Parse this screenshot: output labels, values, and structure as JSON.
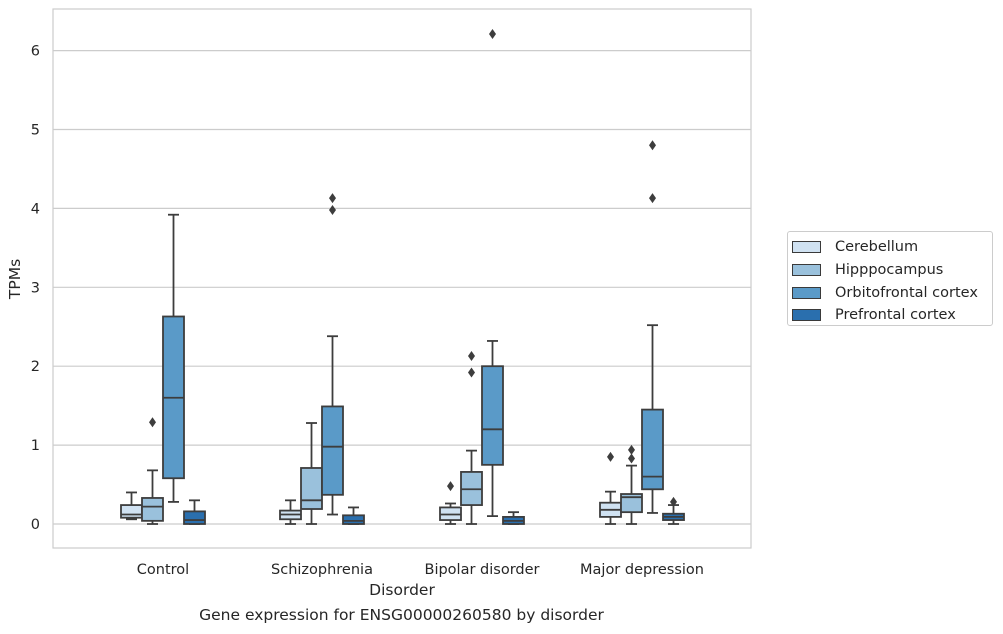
{
  "chart_data": {
    "type": "box",
    "title": "Gene expression for ENSG00000260580 by disorder",
    "xlabel": "Disorder",
    "ylabel": "TPMs",
    "ylim": [
      -0.3,
      6.52
    ],
    "yticks": [
      0,
      1,
      2,
      3,
      4,
      5,
      6
    ],
    "grid": true,
    "legend_position": "right",
    "categories": [
      "Control",
      "Schizophrenia",
      "Bipolar disorder",
      "Major depression"
    ],
    "series": [
      {
        "name": "Cerebellum",
        "color": "#d0e2f2",
        "boxes": [
          {
            "whislo": 0.06,
            "q1": 0.08,
            "med": 0.12,
            "q3": 0.24,
            "whishi": 0.4,
            "fliers": []
          },
          {
            "whislo": 0.0,
            "q1": 0.06,
            "med": 0.12,
            "q3": 0.17,
            "whishi": 0.3,
            "fliers": []
          },
          {
            "whislo": 0.0,
            "q1": 0.05,
            "med": 0.12,
            "q3": 0.21,
            "whishi": 0.26,
            "fliers": [
              0.48
            ]
          },
          {
            "whislo": 0.0,
            "q1": 0.09,
            "med": 0.18,
            "q3": 0.27,
            "whishi": 0.41,
            "fliers": [
              0.85
            ]
          }
        ]
      },
      {
        "name": "Hipppocampus",
        "color": "#9ac1dc",
        "boxes": [
          {
            "whislo": 0.0,
            "q1": 0.04,
            "med": 0.22,
            "q3": 0.33,
            "whishi": 0.68,
            "fliers": [
              1.29
            ]
          },
          {
            "whislo": 0.0,
            "q1": 0.19,
            "med": 0.3,
            "q3": 0.71,
            "whishi": 1.28,
            "fliers": []
          },
          {
            "whislo": 0.0,
            "q1": 0.24,
            "med": 0.44,
            "q3": 0.66,
            "whishi": 0.93,
            "fliers": [
              1.92,
              2.13
            ]
          },
          {
            "whislo": 0.0,
            "q1": 0.15,
            "med": 0.34,
            "q3": 0.38,
            "whishi": 0.74,
            "fliers": [
              0.83,
              0.94
            ]
          }
        ]
      },
      {
        "name": "Orbitofrontal cortex",
        "color": "#5a9ac8",
        "boxes": [
          {
            "whislo": 0.28,
            "q1": 0.58,
            "med": 1.6,
            "q3": 2.63,
            "whishi": 3.92,
            "fliers": []
          },
          {
            "whislo": 0.12,
            "q1": 0.37,
            "med": 0.98,
            "q3": 1.49,
            "whishi": 2.38,
            "fliers": [
              3.98,
              4.13
            ]
          },
          {
            "whislo": 0.1,
            "q1": 0.75,
            "med": 1.2,
            "q3": 2.0,
            "whishi": 2.32,
            "fliers": [
              6.21
            ]
          },
          {
            "whislo": 0.14,
            "q1": 0.44,
            "med": 0.6,
            "q3": 1.45,
            "whishi": 2.52,
            "fliers": [
              4.13,
              4.8
            ]
          }
        ]
      },
      {
        "name": "Prefrontal cortex",
        "color": "#2a6fae",
        "boxes": [
          {
            "whislo": 0.0,
            "q1": 0.0,
            "med": 0.05,
            "q3": 0.16,
            "whishi": 0.3,
            "fliers": []
          },
          {
            "whislo": 0.0,
            "q1": 0.0,
            "med": 0.04,
            "q3": 0.11,
            "whishi": 0.21,
            "fliers": []
          },
          {
            "whislo": 0.0,
            "q1": 0.0,
            "med": 0.04,
            "q3": 0.09,
            "whishi": 0.15,
            "fliers": []
          },
          {
            "whislo": 0.0,
            "q1": 0.05,
            "med": 0.09,
            "q3": 0.13,
            "whishi": 0.24,
            "fliers": [
              0.28
            ]
          }
        ]
      }
    ]
  }
}
